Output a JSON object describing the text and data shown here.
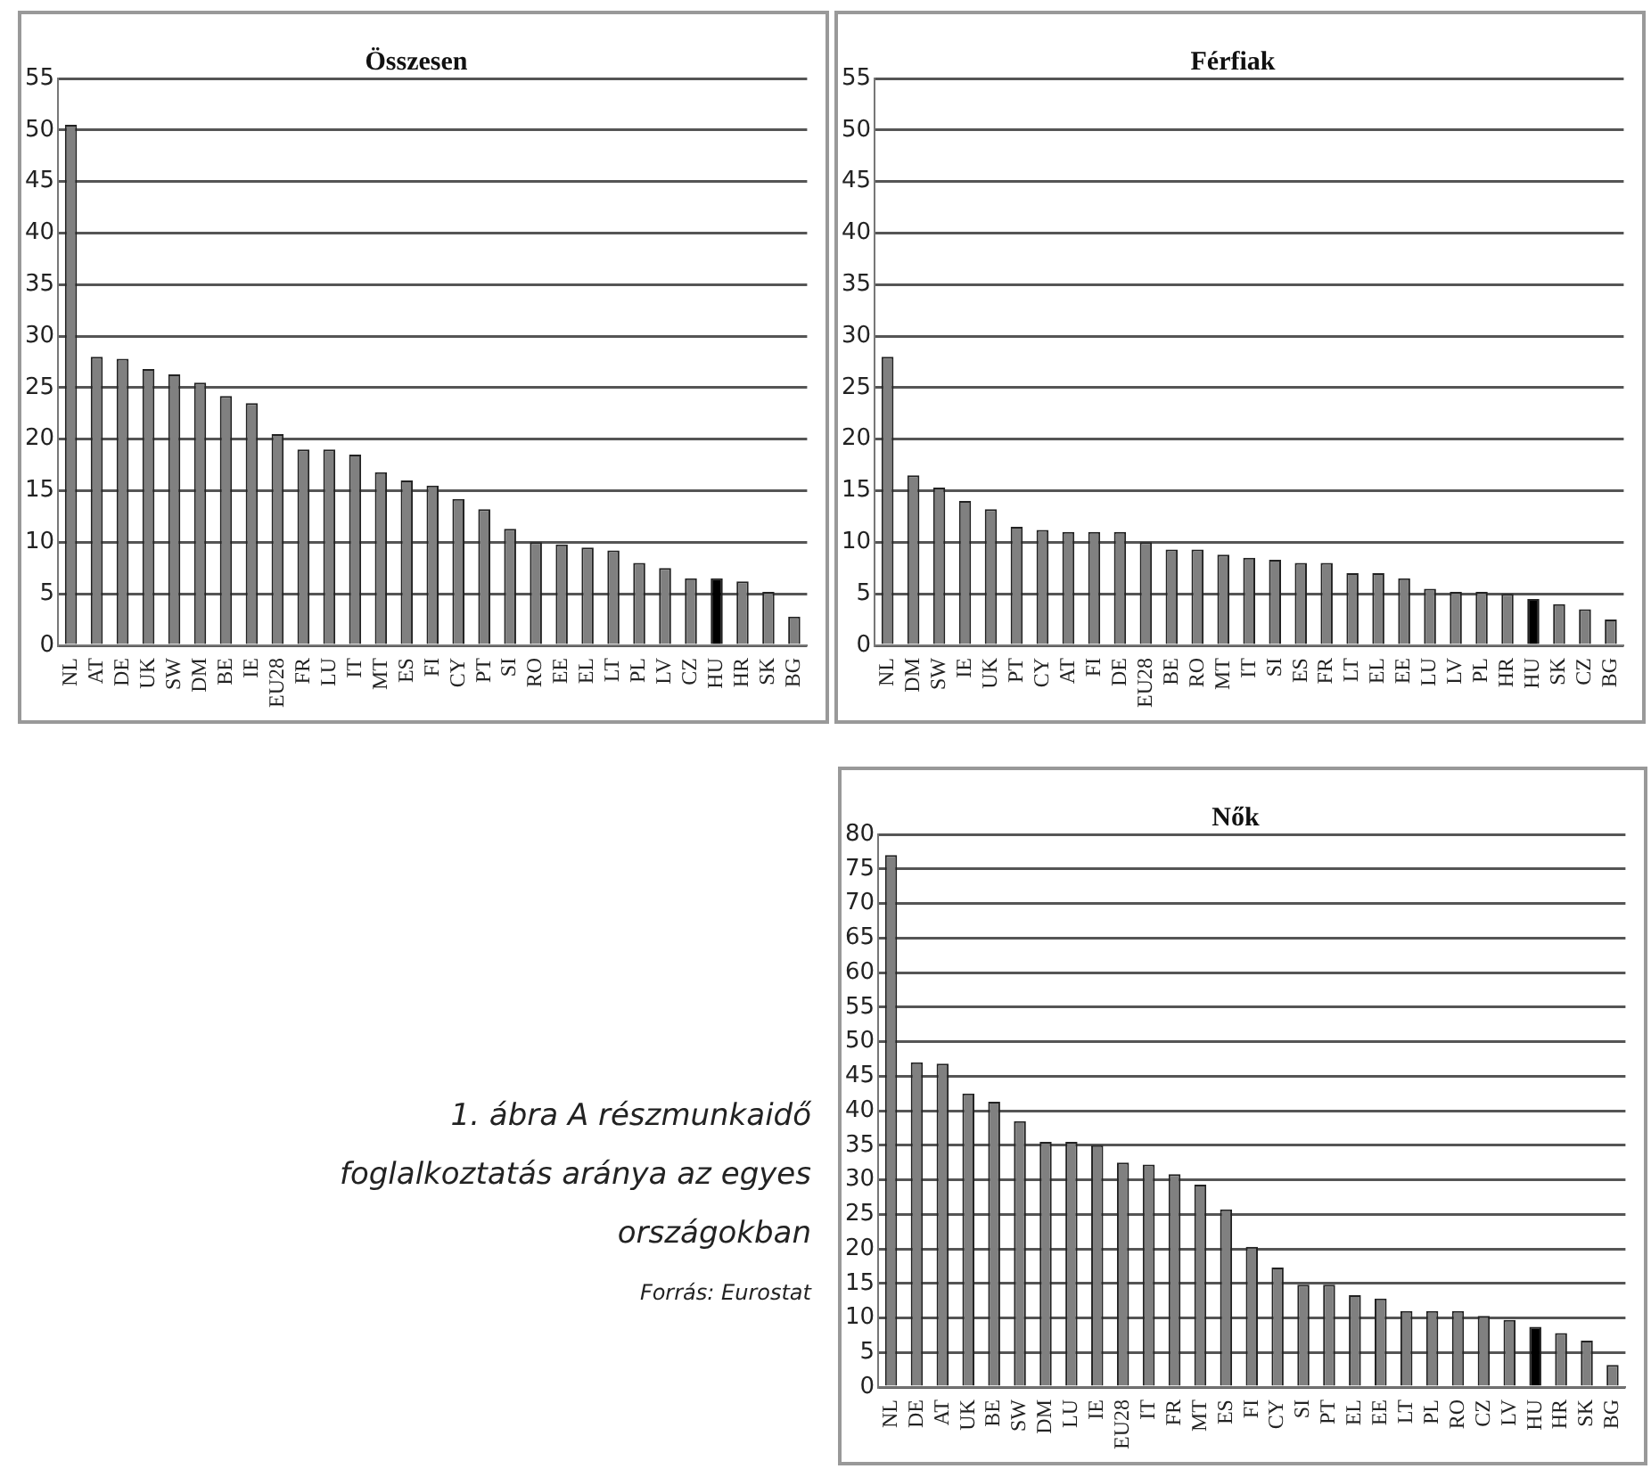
{
  "chart_data": [
    {
      "type": "bar",
      "title": "Összesen",
      "categories": [
        "NL",
        "AT",
        "DE",
        "UK",
        "SW",
        "DM",
        "BE",
        "IE",
        "EU28",
        "FR",
        "LU",
        "IT",
        "MT",
        "ES",
        "FI",
        "CY",
        "PT",
        "SI",
        "RO",
        "EE",
        "EL",
        "LT",
        "PL",
        "LV",
        "CZ",
        "HU",
        "HR",
        "SK",
        "BG"
      ],
      "values": [
        50.5,
        28,
        27.8,
        26.8,
        26.3,
        25.5,
        24.2,
        23.5,
        20.5,
        19,
        19,
        18.5,
        16.8,
        16,
        15.5,
        14.2,
        13.2,
        11.3,
        10,
        9.8,
        9.5,
        9.2,
        8,
        7.5,
        6.5,
        6.5,
        6.2,
        5.2,
        2.8
      ],
      "colors": [
        "#808080",
        "#808080",
        "#808080",
        "#808080",
        "#808080",
        "#808080",
        "#808080",
        "#808080",
        "#808080",
        "#808080",
        "#808080",
        "#808080",
        "#808080",
        "#808080",
        "#808080",
        "#808080",
        "#808080",
        "#808080",
        "#808080",
        "#808080",
        "#808080",
        "#808080",
        "#808080",
        "#808080",
        "#808080",
        "#000000",
        "#808080",
        "#808080",
        "#808080"
      ],
      "ylim": [
        0,
        55
      ],
      "yticks": [
        0,
        5,
        10,
        15,
        20,
        25,
        30,
        35,
        40,
        45,
        50,
        55
      ],
      "grid": "y"
    },
    {
      "type": "bar",
      "title": "Férfiak",
      "categories": [
        "NL",
        "DM",
        "SW",
        "IE",
        "UK",
        "PT",
        "CY",
        "AT",
        "FI",
        "DE",
        "EU28",
        "BE",
        "RO",
        "MT",
        "IT",
        "SI",
        "ES",
        "FR",
        "LT",
        "EL",
        "EE",
        "LU",
        "LV",
        "PL",
        "HR",
        "HU",
        "SK",
        "CZ",
        "BG"
      ],
      "values": [
        28,
        16.5,
        15.3,
        14,
        13.2,
        11.5,
        11.2,
        11,
        11,
        11,
        10,
        9.3,
        9.3,
        8.8,
        8.5,
        8.3,
        8,
        8,
        7,
        7,
        6.5,
        5.5,
        5.2,
        5.2,
        5,
        4.5,
        4,
        3.5,
        2.5
      ],
      "colors": [
        "#808080",
        "#808080",
        "#808080",
        "#808080",
        "#808080",
        "#808080",
        "#808080",
        "#808080",
        "#808080",
        "#808080",
        "#808080",
        "#808080",
        "#808080",
        "#808080",
        "#808080",
        "#808080",
        "#808080",
        "#808080",
        "#808080",
        "#808080",
        "#808080",
        "#808080",
        "#808080",
        "#808080",
        "#808080",
        "#000000",
        "#808080",
        "#808080",
        "#808080"
      ],
      "ylim": [
        0,
        55
      ],
      "yticks": [
        0,
        5,
        10,
        15,
        20,
        25,
        30,
        35,
        40,
        45,
        50,
        55
      ],
      "grid": "y"
    },
    {
      "type": "bar",
      "title": "Nők",
      "categories": [
        "NL",
        "DE",
        "AT",
        "UK",
        "BE",
        "SW",
        "DM",
        "LU",
        "IE",
        "EU28",
        "IT",
        "FR",
        "MT",
        "ES",
        "FI",
        "CY",
        "SI",
        "PT",
        "EL",
        "EE",
        "LT",
        "PL",
        "RO",
        "CZ",
        "LV",
        "HU",
        "HR",
        "SK",
        "BG"
      ],
      "values": [
        77,
        47,
        46.8,
        42.5,
        41.3,
        38.5,
        35.5,
        35.5,
        35,
        32.5,
        32.2,
        30.8,
        29.3,
        25.7,
        20.3,
        17.3,
        14.8,
        14.8,
        13.3,
        12.8,
        11,
        11,
        11,
        10.3,
        9.7,
        8.7,
        7.8,
        6.7,
        3.2
      ],
      "colors": [
        "#808080",
        "#808080",
        "#808080",
        "#808080",
        "#808080",
        "#808080",
        "#808080",
        "#808080",
        "#808080",
        "#808080",
        "#808080",
        "#808080",
        "#808080",
        "#808080",
        "#808080",
        "#808080",
        "#808080",
        "#808080",
        "#808080",
        "#808080",
        "#808080",
        "#808080",
        "#808080",
        "#808080",
        "#808080",
        "#000000",
        "#808080",
        "#808080",
        "#808080"
      ],
      "ylim": [
        0,
        80
      ],
      "yticks": [
        0,
        5,
        10,
        15,
        20,
        25,
        30,
        35,
        40,
        45,
        50,
        55,
        60,
        65,
        70,
        75,
        80
      ],
      "grid": "y"
    },
    {
      "type": "other",
      "annotations": [
        "1. ábra A részmunkaidő foglalkoztatás aránya az egyes országokban",
        "Forrás: Eurostat"
      ]
    }
  ]
}
